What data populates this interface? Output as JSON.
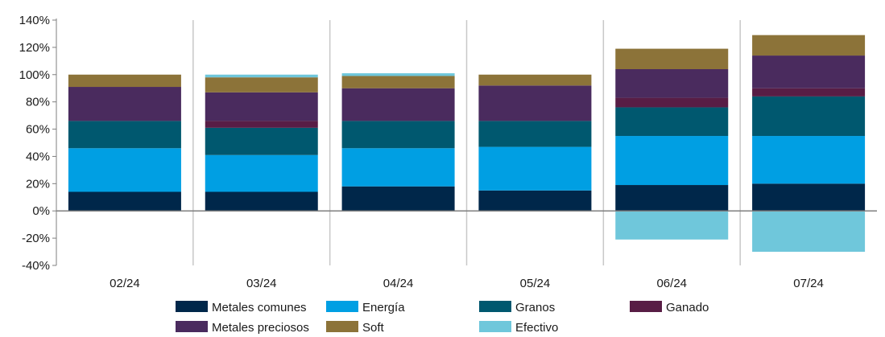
{
  "chart_data": {
    "type": "bar",
    "stacked": true,
    "categories": [
      "02/24",
      "03/24",
      "04/24",
      "05/24",
      "06/24",
      "07/24"
    ],
    "ylim": [
      -40,
      140
    ],
    "yticks": [
      -40,
      -20,
      0,
      20,
      40,
      60,
      80,
      100,
      120,
      140
    ],
    "ytick_labels": [
      "-40%",
      "-20%",
      "0%",
      "20%",
      "40%",
      "60%",
      "80%",
      "100%",
      "120%",
      "140%"
    ],
    "series": [
      {
        "name": "Metales comunes",
        "color": "#00274a",
        "values": [
          14,
          14,
          18,
          15,
          19,
          20
        ]
      },
      {
        "name": "Energía",
        "color": "#009fe3",
        "values": [
          32,
          27,
          28,
          32,
          36,
          35
        ]
      },
      {
        "name": "Granos",
        "color": "#00586f",
        "values": [
          20,
          20,
          20,
          19,
          21,
          29
        ]
      },
      {
        "name": "Ganado",
        "color": "#581d45",
        "values": [
          0,
          5,
          0,
          0,
          7,
          6
        ]
      },
      {
        "name": "Metales preciosos",
        "color": "#4a2b5e",
        "values": [
          25,
          21,
          24,
          26,
          21,
          24
        ]
      },
      {
        "name": "Soft",
        "color": "#8c7339",
        "values": [
          9,
          11,
          9,
          8,
          15,
          15
        ]
      },
      {
        "name": "Efectivo",
        "color": "#6fc7db",
        "values": [
          0,
          2,
          2,
          0,
          -21,
          -30
        ]
      }
    ],
    "grid": false,
    "legend_position": "bottom"
  }
}
